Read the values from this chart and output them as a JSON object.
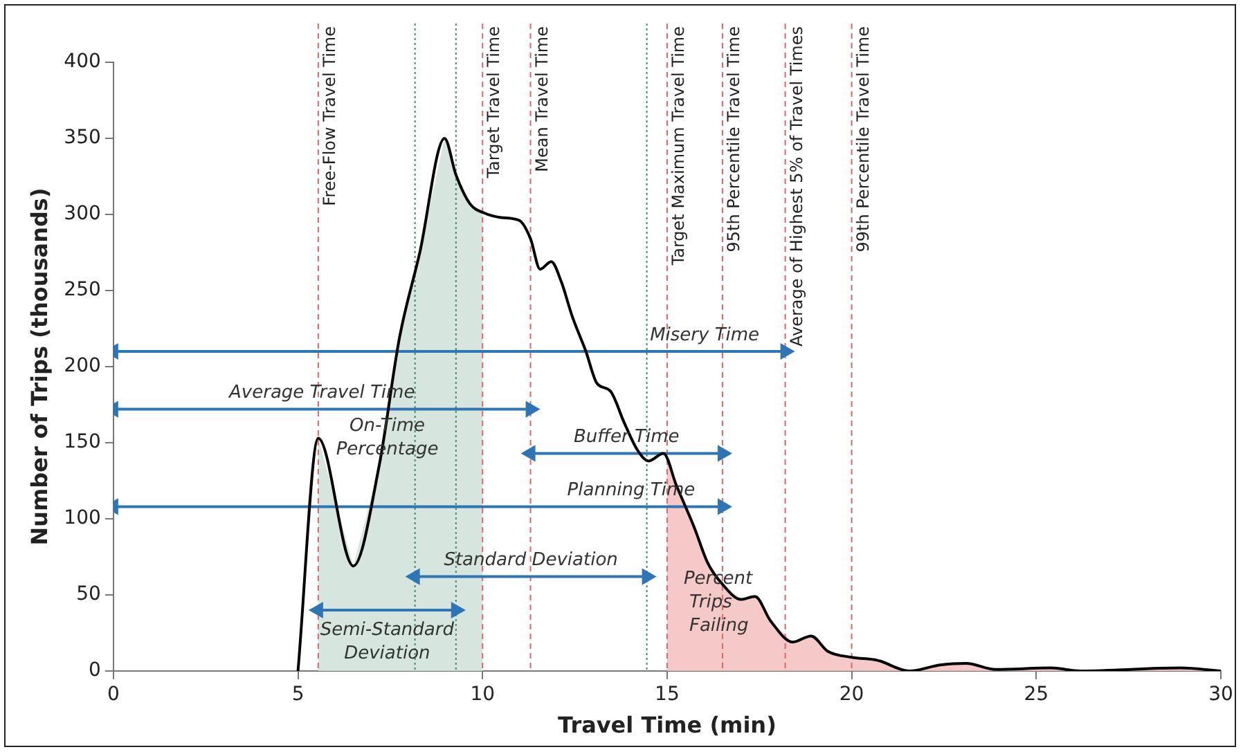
{
  "chart_data": {
    "type": "line",
    "xlabel": "Travel Time (min)",
    "ylabel": "Number of Trips (thousands)",
    "xlim": [
      0,
      30
    ],
    "xticks": [
      0,
      5,
      10,
      15,
      20,
      25,
      30
    ],
    "ylim": [
      0,
      400
    ],
    "yticks": [
      0,
      50,
      100,
      150,
      200,
      250,
      300,
      350,
      400
    ],
    "grid": false,
    "legend": false,
    "marker": "none",
    "series": [
      {
        "color": "#000000",
        "x": [
          5,
          5.55,
          6.5,
          7.2,
          7.75,
          8.3,
          8.97,
          9.28,
          9.66,
          10.04,
          10.5,
          11,
          11.3,
          11.56,
          11.86,
          12.13,
          12.43,
          12.8,
          13.1,
          13.46,
          13.84,
          14.2,
          14.5,
          14.9,
          15.25,
          15.74,
          16.1,
          16.5,
          17,
          17.38,
          17.8,
          18.4,
          18.9,
          19.35,
          20,
          20.7,
          21.56,
          22.4,
          23.1,
          23.9,
          25.4,
          26.2,
          28.9,
          30
        ],
        "values": [
          0,
          153,
          69,
          135,
          219,
          275,
          350,
          326,
          307,
          301,
          298,
          296,
          284,
          264,
          269,
          256,
          233,
          210,
          189,
          184,
          163,
          145,
          138,
          143,
          122,
          94,
          71,
          57,
          47,
          49,
          33,
          19,
          23,
          13,
          9,
          7,
          0,
          4,
          5,
          1,
          2,
          0,
          2,
          0
        ]
      },
      {
        "name": "Misery Time",
        "color": "#2e75b6",
        "marker": "triangle",
        "x": [
          0,
          18.2
        ],
        "values": [
          210,
          210
        ]
      },
      {
        "name": "Average Travel Time",
        "color": "#2e75b6",
        "marker": "triangle",
        "x": [
          0,
          11.3
        ],
        "values": [
          172,
          172
        ]
      },
      {
        "name": "Buffer Time",
        "color": "#2e75b6",
        "marker": "triangle",
        "x": [
          11.3,
          16.5
        ],
        "values": [
          143,
          143
        ]
      },
      {
        "name": "Planning Time",
        "color": "#2e75b6",
        "marker": "triangle",
        "x": [
          0,
          16.5
        ],
        "values": [
          108,
          108
        ]
      },
      {
        "name": "Standard Deviation",
        "color": "#2e75b6",
        "marker": "triangle",
        "x": [
          8.17,
          14.45
        ],
        "values": [
          62,
          62
        ]
      },
      {
        "name": "Semi-Standard Deviation",
        "color": "#2e75b6",
        "marker": "triangle",
        "x": [
          5.55,
          9.28
        ],
        "values": [
          40,
          40
        ]
      }
    ],
    "ref_lines": [
      {
        "axis": "x",
        "value": 5.55,
        "label": "Free-Flow Travel Time",
        "color": "#e06666",
        "line_style": "dashed"
      },
      {
        "axis": "x",
        "value": 10,
        "label": "Target Travel Time",
        "color": "#e06666",
        "line_style": "dashed"
      },
      {
        "axis": "x",
        "value": 11.3,
        "label": "Mean Travel Time",
        "color": "#e06666",
        "line_style": "dashed"
      },
      {
        "axis": "x",
        "value": 15,
        "label": "Target Maximum Travel Time",
        "color": "#e06666",
        "line_style": "dashed"
      },
      {
        "axis": "x",
        "value": 16.5,
        "label": "95th Percentile Travel Time",
        "color": "#e06666",
        "line_style": "dashed"
      },
      {
        "axis": "x",
        "value": 18.2,
        "label": "Average of Highest 5% of Travel Times",
        "color": "#e06666",
        "line_style": "dashed"
      },
      {
        "axis": "x",
        "value": 20,
        "label": "99th Percentile Travel Time",
        "color": "#e06666",
        "line_style": "dashed"
      },
      {
        "axis": "x",
        "value": 8.17,
        "color": "#3c8c6e",
        "line_style": "dotted"
      },
      {
        "axis": "x",
        "value": 9.28,
        "color": "#3c8c6e",
        "line_style": "dotted"
      },
      {
        "axis": "x",
        "value": 14.45,
        "color": "#3c8c6e",
        "line_style": "dotted"
      }
    ],
    "bands": [
      {
        "axis": "x",
        "from": 5.55,
        "to": 10,
        "label": "On-Time Percentage",
        "color": "#cfe0d8"
      },
      {
        "axis": "x",
        "from": 15,
        "to": 30,
        "label": "Percent Trips Failing",
        "color": "#f4c0c0"
      }
    ]
  }
}
